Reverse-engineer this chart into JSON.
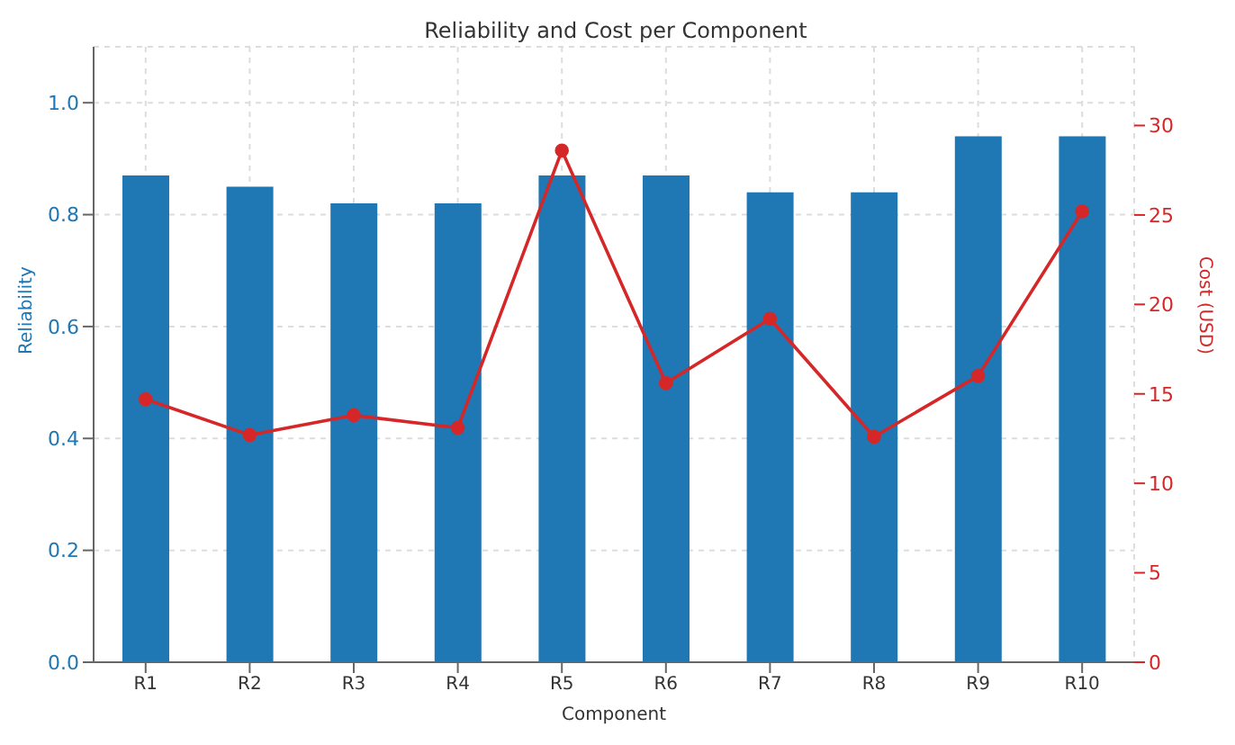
{
  "chart_data": {
    "type": "bar",
    "title": "Reliability and Cost per Component",
    "xlabel": "Component",
    "ylabel": "Reliability",
    "y2label": "Cost (USD)",
    "categories": [
      "R1",
      "R2",
      "R3",
      "R4",
      "R5",
      "R6",
      "R7",
      "R8",
      "R9",
      "R10"
    ],
    "series": [
      {
        "color": "#1f77b4",
        "values": [
          0.87,
          0.85,
          0.82,
          0.82,
          0.87,
          0.87,
          0.84,
          0.84,
          0.94,
          0.94
        ]
      },
      {
        "type": "line",
        "axis": "y2",
        "color": "#d62728",
        "marker": "circle",
        "values": [
          14.7,
          12.7,
          13.8,
          13.1,
          28.6,
          15.6,
          19.2,
          12.6,
          16.0,
          25.2
        ]
      }
    ],
    "ylim": [
      0,
      1.1
    ],
    "yticks": [
      {
        "value": 0,
        "label": "0.0"
      },
      0.2,
      0.4,
      0.6,
      0.8,
      {
        "value": 1,
        "label": "1.0"
      }
    ],
    "y2lim": [
      0,
      34.4
    ],
    "y2ticks": [
      0,
      5,
      10,
      15,
      20,
      25,
      30
    ],
    "grid": true
  }
}
